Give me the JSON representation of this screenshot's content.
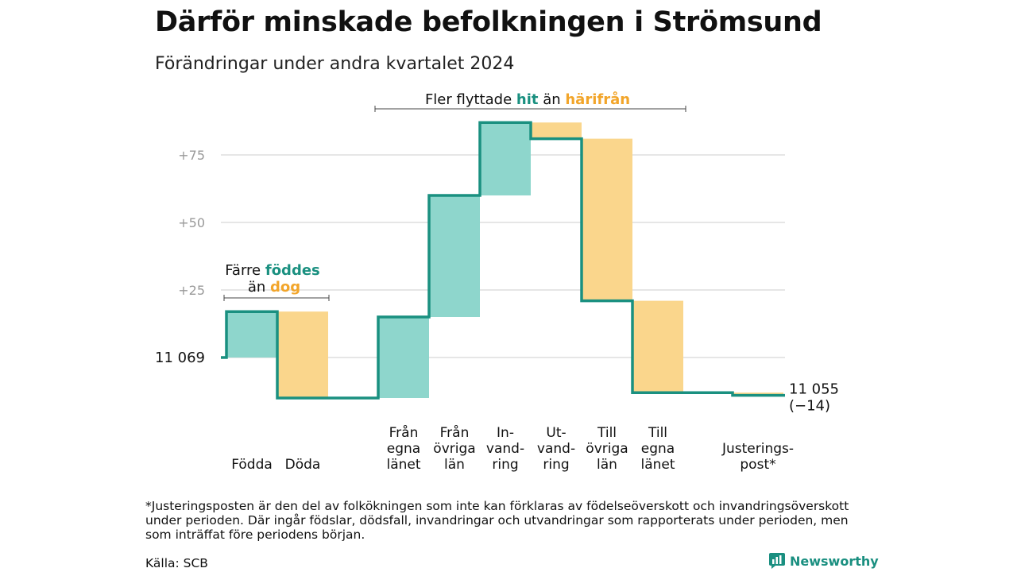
{
  "title": "Därför minskade befolkningen i Strömsund",
  "subtitle": "Förändringar under andra kvartalet 2024",
  "footnote": "*Justeringsposten är den del av folkökningen som inte kan förklaras av födelseöverskott och invandringsöverskott under perioden. Där ingår födslar, dödsfall, invandringar och utvandringar som rapporterats under perioden, men som inträffat före periodens början.",
  "source": "Källa: SCB",
  "brand": "Newsworthy",
  "colors": {
    "increase": "#8ed6cc",
    "decrease": "#fad68c",
    "line": "#1a9080",
    "teal_text": "#1a9080",
    "orange_text": "#f2a52a",
    "grid": "#dddddd"
  },
  "chart_data": {
    "type": "waterfall",
    "start_label": "11  069",
    "start_value": 11069,
    "end_label": "11 055",
    "end_change": "(−14)",
    "end_value": 11055,
    "y_ticks": [
      {
        "label": "+25",
        "value": 25
      },
      {
        "label": "+50",
        "value": 50
      },
      {
        "label": "+75",
        "value": 75
      }
    ],
    "ylim": [
      -30,
      88
    ],
    "steps": [
      {
        "label": [
          "Födda"
        ],
        "change": 17,
        "group": 1
      },
      {
        "label": [
          "Döda"
        ],
        "change": -32,
        "group": 1
      },
      {
        "label": [
          "Från",
          "egna",
          "länet"
        ],
        "change": 30,
        "group": 2
      },
      {
        "label": [
          "Från",
          "övriga",
          "län"
        ],
        "change": 45,
        "group": 2
      },
      {
        "label": [
          "In-",
          "vand-",
          "ring"
        ],
        "change": 27,
        "group": 2
      },
      {
        "label": [
          "Ut-",
          "vand-",
          "ring"
        ],
        "change": -6,
        "group": 2
      },
      {
        "label": [
          "Till",
          "övriga",
          "län"
        ],
        "change": -60,
        "group": 2
      },
      {
        "label": [
          "Till",
          "egna",
          "länet"
        ],
        "change": -34,
        "group": 2
      },
      {
        "label": [
          "Justerings-",
          "post*"
        ],
        "change": -1,
        "group": 3
      }
    ],
    "annotations": [
      {
        "lines": [
          [
            {
              "text": "Färre ",
              "color": "dark"
            },
            {
              "text": "föddes",
              "color": "teal"
            }
          ],
          [
            {
              "text": "än ",
              "color": "dark"
            },
            {
              "text": "dog",
              "color": "orange"
            }
          ]
        ]
      },
      {
        "lines": [
          [
            {
              "text": "Fler flyttade ",
              "color": "dark"
            },
            {
              "text": "hit",
              "color": "teal"
            },
            {
              "text": "  än ",
              "color": "dark"
            },
            {
              "text": "härifrån",
              "color": "orange"
            }
          ]
        ]
      }
    ]
  }
}
